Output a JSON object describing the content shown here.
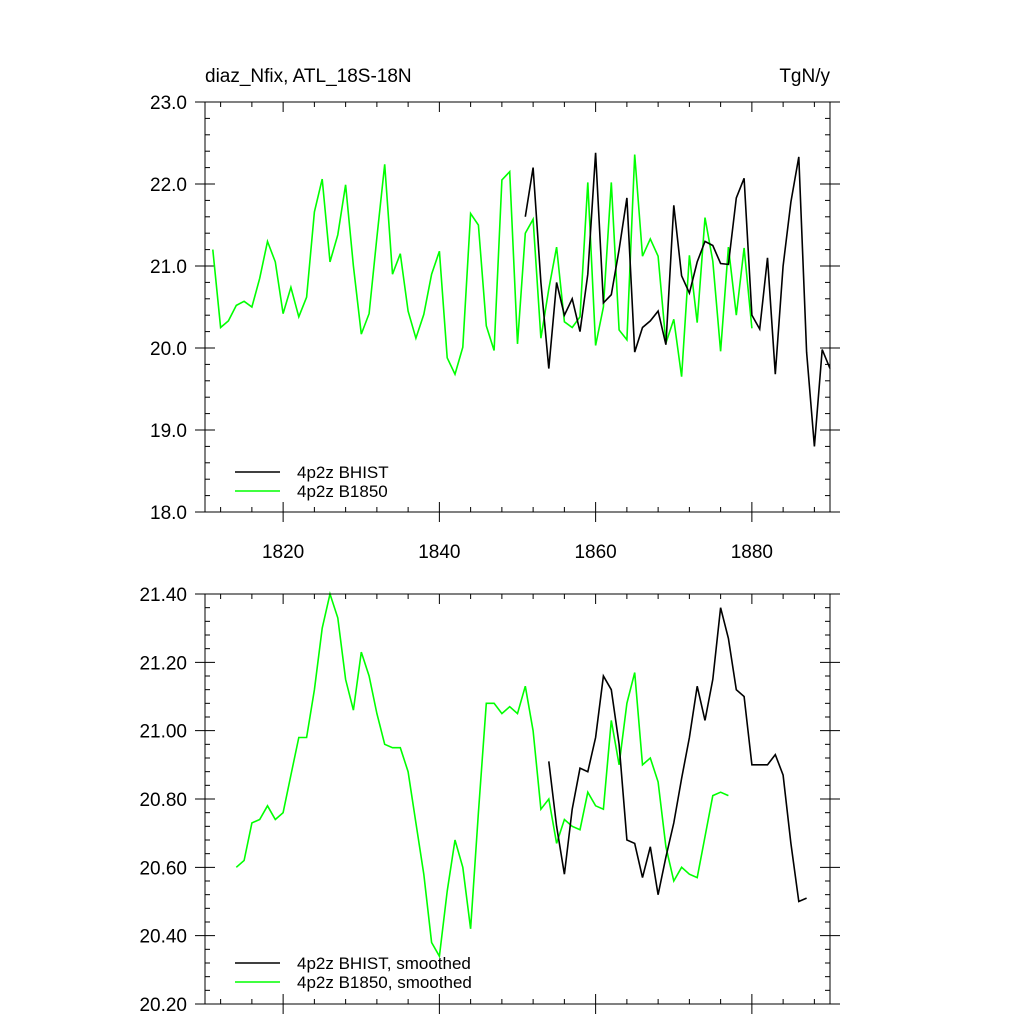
{
  "chart_data": [
    {
      "type": "line",
      "title_left": "diaz_Nfix, ATL_18S-18N",
      "title_right": "TgN/y",
      "xlim": [
        1810,
        1890
      ],
      "ylim": [
        18.0,
        23.0
      ],
      "xticks": [
        1820,
        1840,
        1860,
        1880
      ],
      "xtick_labels": [
        "1820",
        "1840",
        "1860",
        "1880"
      ],
      "yticks": [
        18.0,
        19.0,
        20.0,
        21.0,
        22.0,
        23.0
      ],
      "ytick_labels": [
        "18.0",
        "19.0",
        "20.0",
        "21.0",
        "22.0",
        "23.0"
      ],
      "legend_position": "bottom-left",
      "series": [
        {
          "name": "4p2z BHIST",
          "color": "#000000",
          "x": [
            1851,
            1852,
            1853,
            1854,
            1855,
            1856,
            1857,
            1858,
            1859,
            1860,
            1861,
            1862,
            1863,
            1864,
            1865,
            1866,
            1867,
            1868,
            1869,
            1870,
            1871,
            1872,
            1873,
            1874,
            1875,
            1876,
            1877,
            1878,
            1879,
            1880,
            1881,
            1882,
            1883,
            1884,
            1885,
            1886,
            1887,
            1888,
            1889,
            1890
          ],
          "y": [
            21.6,
            22.2,
            20.8,
            19.75,
            20.8,
            20.4,
            20.6,
            20.2,
            20.9,
            22.38,
            20.55,
            20.65,
            21.2,
            21.83,
            19.95,
            20.25,
            20.33,
            20.45,
            20.04,
            21.74,
            20.88,
            20.67,
            21.05,
            21.3,
            21.25,
            21.03,
            21.02,
            21.83,
            22.07,
            20.4,
            20.23,
            21.1,
            19.68,
            21.0,
            21.78,
            22.33,
            19.95,
            18.8,
            19.98,
            19.75
          ]
        },
        {
          "name": "4p2z B1850",
          "color": "#00ff00",
          "x": [
            1811,
            1812,
            1813,
            1814,
            1815,
            1816,
            1817,
            1818,
            1819,
            1820,
            1821,
            1822,
            1823,
            1824,
            1825,
            1826,
            1827,
            1828,
            1829,
            1830,
            1831,
            1832,
            1833,
            1834,
            1835,
            1836,
            1837,
            1838,
            1839,
            1840,
            1841,
            1842,
            1843,
            1844,
            1845,
            1846,
            1847,
            1848,
            1849,
            1850,
            1851,
            1852,
            1853,
            1854,
            1855,
            1856,
            1857,
            1858,
            1859,
            1860,
            1861,
            1862,
            1863,
            1864,
            1865,
            1866,
            1867,
            1868,
            1869,
            1870,
            1871,
            1872,
            1873,
            1874,
            1875,
            1876,
            1877,
            1878,
            1879,
            1880
          ],
          "y": [
            21.2,
            20.25,
            20.33,
            20.52,
            20.57,
            20.5,
            20.85,
            21.3,
            21.05,
            20.42,
            20.74,
            20.38,
            20.62,
            21.66,
            22.06,
            21.05,
            21.38,
            21.99,
            21.0,
            20.17,
            20.42,
            21.35,
            22.24,
            20.9,
            21.15,
            20.45,
            20.12,
            20.41,
            20.9,
            21.18,
            19.88,
            19.68,
            20.01,
            21.64,
            21.5,
            20.27,
            19.97,
            22.05,
            22.15,
            20.05,
            21.4,
            21.57,
            20.12,
            20.72,
            21.23,
            20.32,
            20.25,
            20.38,
            22.02,
            20.03,
            20.5,
            22.02,
            20.22,
            20.1,
            22.36,
            21.12,
            21.33,
            21.12,
            20.06,
            20.35,
            19.65,
            21.13,
            20.31,
            21.59,
            21.06,
            19.96,
            21.23,
            20.4,
            21.22,
            20.24
          ]
        }
      ]
    },
    {
      "type": "line",
      "xlim": [
        1810,
        1890
      ],
      "ylim": [
        20.2,
        21.4
      ],
      "xticks": [
        1820,
        1840,
        1860,
        1880
      ],
      "yticks": [
        20.2,
        20.4,
        20.6,
        20.8,
        21.0,
        21.2,
        21.4
      ],
      "ytick_labels": [
        "20.20",
        "20.40",
        "20.60",
        "20.80",
        "21.00",
        "21.20",
        "21.40"
      ],
      "legend_position": "bottom-left",
      "series": [
        {
          "name": "4p2z BHIST, smoothed",
          "color": "#000000",
          "x": [
            1854,
            1855,
            1856,
            1857,
            1858,
            1859,
            1860,
            1861,
            1862,
            1863,
            1864,
            1865,
            1866,
            1867,
            1868,
            1869,
            1870,
            1871,
            1872,
            1873,
            1874,
            1875,
            1876,
            1877,
            1878,
            1879,
            1880,
            1881,
            1882,
            1883,
            1884,
            1885,
            1886,
            1887
          ],
          "y": [
            20.91,
            20.72,
            20.58,
            20.77,
            20.89,
            20.88,
            20.98,
            21.16,
            21.12,
            20.96,
            20.68,
            20.67,
            20.57,
            20.66,
            20.52,
            20.63,
            20.73,
            20.86,
            20.98,
            21.13,
            21.03,
            21.15,
            21.36,
            21.27,
            21.12,
            21.1,
            20.9,
            20.9,
            20.9,
            20.93,
            20.87,
            20.67,
            20.5,
            20.51
          ]
        },
        {
          "name": "4p2z B1850, smoothed",
          "color": "#00ff00",
          "x": [
            1814,
            1815,
            1816,
            1817,
            1818,
            1819,
            1820,
            1821,
            1822,
            1823,
            1824,
            1825,
            1826,
            1827,
            1828,
            1829,
            1830,
            1831,
            1832,
            1833,
            1834,
            1835,
            1836,
            1837,
            1838,
            1839,
            1840,
            1841,
            1842,
            1843,
            1844,
            1845,
            1846,
            1847,
            1848,
            1849,
            1850,
            1851,
            1852,
            1853,
            1854,
            1855,
            1856,
            1857,
            1858,
            1859,
            1860,
            1861,
            1862,
            1863,
            1864,
            1865,
            1866,
            1867,
            1868,
            1869,
            1870,
            1871,
            1872,
            1873,
            1874,
            1875,
            1876,
            1877
          ],
          "y": [
            20.6,
            20.62,
            20.73,
            20.74,
            20.78,
            20.74,
            20.76,
            20.87,
            20.98,
            20.98,
            21.12,
            21.3,
            21.4,
            21.33,
            21.15,
            21.06,
            21.23,
            21.16,
            21.05,
            20.96,
            20.95,
            20.95,
            20.88,
            20.73,
            20.58,
            20.38,
            20.34,
            20.53,
            20.68,
            20.6,
            20.42,
            20.76,
            21.08,
            21.08,
            21.05,
            21.07,
            21.05,
            21.13,
            21.0,
            20.77,
            20.8,
            20.67,
            20.74,
            20.72,
            20.71,
            20.82,
            20.78,
            20.77,
            21.03,
            20.9,
            21.08,
            21.17,
            20.9,
            20.92,
            20.85,
            20.66,
            20.56,
            20.6,
            20.58,
            20.57,
            20.69,
            20.81,
            20.82,
            20.81
          ]
        }
      ]
    }
  ]
}
